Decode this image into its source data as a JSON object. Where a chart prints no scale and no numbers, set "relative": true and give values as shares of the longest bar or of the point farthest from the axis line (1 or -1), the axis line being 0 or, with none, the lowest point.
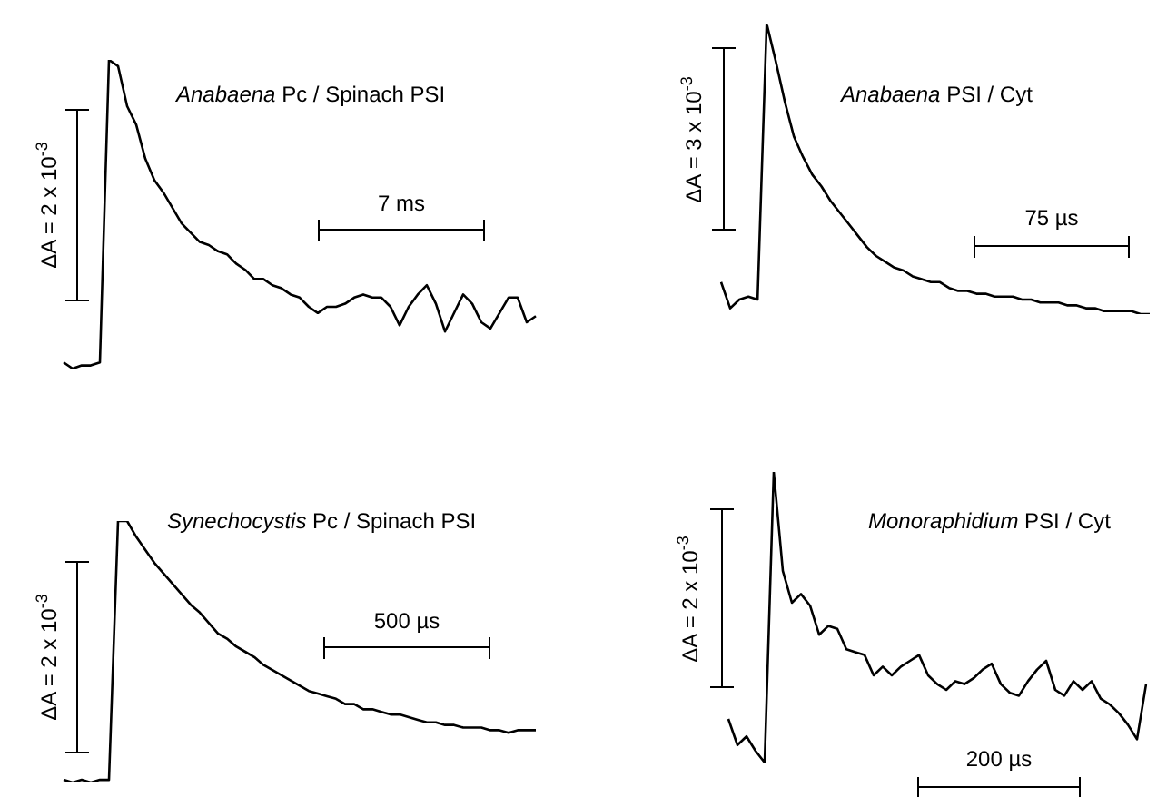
{
  "chart_data": [
    {
      "type": "line",
      "title": "Anabaena Pc / Spinach PSI",
      "relative": true,
      "marker": "none",
      "color": "#000000",
      "categories": [
        null,
        null,
        null,
        null,
        null,
        null,
        null,
        null,
        null,
        null,
        null,
        null,
        null,
        null,
        null,
        null,
        null,
        null,
        null,
        null,
        null,
        null,
        null,
        null,
        null,
        null,
        null,
        null,
        null,
        null,
        null,
        null,
        null,
        null,
        null,
        null,
        null,
        null,
        null,
        null,
        null,
        null,
        null,
        null,
        null,
        null,
        null,
        null,
        null,
        null,
        null,
        null,
        null
      ],
      "values": [
        0.02,
        0,
        0.01,
        0.01,
        0.02,
        1,
        0.98,
        0.85,
        0.79,
        0.68,
        0.61,
        0.57,
        0.52,
        0.47,
        0.44,
        0.41,
        0.4,
        0.38,
        0.37,
        0.34,
        0.32,
        0.29,
        0.29,
        0.27,
        0.26,
        0.24,
        0.23,
        0.2,
        0.18,
        0.2,
        0.2,
        0.21,
        0.23,
        0.24,
        0.23,
        0.23,
        0.2,
        0.14,
        0.2,
        0.24,
        0.27,
        0.21,
        0.12,
        0.18,
        0.24,
        0.21,
        0.15,
        0.13,
        0.18,
        0.23,
        0.23,
        0.15,
        0.17
      ],
      "annotations": [
        "ΔA = 2 x 10$^{-3}$",
        "7 ms"
      ]
    },
    {
      "type": "line",
      "title": "Anabaena PSI / Cyt",
      "relative": true,
      "marker": "none",
      "color": "#000000",
      "categories": [
        null,
        null,
        null,
        null,
        null,
        null,
        null,
        null,
        null,
        null,
        null,
        null,
        null,
        null,
        null,
        null,
        null,
        null,
        null,
        null,
        null,
        null,
        null,
        null,
        null,
        null,
        null,
        null,
        null,
        null,
        null,
        null,
        null,
        null,
        null,
        null,
        null,
        null,
        null,
        null,
        null,
        null,
        null,
        null,
        null,
        null,
        null,
        null
      ],
      "values": [
        0.11,
        0.02,
        0.05,
        0.06,
        0.05,
        1,
        0.87,
        0.73,
        0.61,
        0.54,
        0.48,
        0.44,
        0.39,
        0.35,
        0.31,
        0.27,
        0.23,
        0.2,
        0.18,
        0.16,
        0.15,
        0.13,
        0.12,
        0.11,
        0.11,
        0.09,
        0.08,
        0.08,
        0.07,
        0.07,
        0.06,
        0.06,
        0.06,
        0.05,
        0.05,
        0.04,
        0.04,
        0.04,
        0.03,
        0.03,
        0.02,
        0.02,
        0.01,
        0.01,
        0.01,
        0.01,
        0,
        0
      ],
      "annotations": [
        "ΔA = 3 x 10$^{-3}$",
        "75 µs"
      ]
    },
    {
      "type": "line",
      "title": "Synechocystis Pc / Spinach PSI",
      "relative": true,
      "marker": "none",
      "color": "#000000",
      "categories": [
        null,
        null,
        null,
        null,
        null,
        null,
        null,
        null,
        null,
        null,
        null,
        null,
        null,
        null,
        null,
        null,
        null,
        null,
        null,
        null,
        null,
        null,
        null,
        null,
        null,
        null,
        null,
        null,
        null,
        null,
        null,
        null,
        null,
        null,
        null,
        null,
        null,
        null,
        null,
        null,
        null,
        null,
        null,
        null,
        null,
        null,
        null,
        null,
        null,
        null,
        null,
        null,
        null
      ],
      "values": [
        0.01,
        0,
        0.01,
        0,
        0.01,
        0.01,
        1,
        1,
        0.94,
        0.89,
        0.84,
        0.8,
        0.76,
        0.72,
        0.68,
        0.65,
        0.61,
        0.57,
        0.55,
        0.52,
        0.5,
        0.48,
        0.45,
        0.43,
        0.41,
        0.39,
        0.37,
        0.35,
        0.34,
        0.33,
        0.32,
        0.3,
        0.3,
        0.28,
        0.28,
        0.27,
        0.26,
        0.26,
        0.25,
        0.24,
        0.23,
        0.23,
        0.22,
        0.22,
        0.21,
        0.21,
        0.21,
        0.2,
        0.2,
        0.19,
        0.2,
        0.2,
        0.2
      ],
      "annotations": [
        "ΔA = 2 x 10$^{-3}$",
        "500 µs"
      ]
    },
    {
      "type": "line",
      "title": "Monoraphidium PSI / Cyt",
      "relative": true,
      "marker": "none",
      "color": "#000000",
      "categories": [
        null,
        null,
        null,
        null,
        null,
        null,
        null,
        null,
        null,
        null,
        null,
        null,
        null,
        null,
        null,
        null,
        null,
        null,
        null,
        null,
        null,
        null,
        null,
        null,
        null,
        null,
        null,
        null,
        null,
        null,
        null,
        null,
        null,
        null,
        null,
        null,
        null,
        null,
        null,
        null,
        null,
        null,
        null,
        null,
        null,
        null,
        null
      ],
      "values": [
        0.15,
        0.06,
        0.09,
        0.04,
        0,
        1,
        0.66,
        0.55,
        0.58,
        0.54,
        0.44,
        0.47,
        0.46,
        0.39,
        0.38,
        0.37,
        0.3,
        0.33,
        0.3,
        0.33,
        0.35,
        0.37,
        0.3,
        0.27,
        0.25,
        0.28,
        0.27,
        0.29,
        0.32,
        0.34,
        0.27,
        0.24,
        0.23,
        0.28,
        0.32,
        0.35,
        0.25,
        0.23,
        0.28,
        0.25,
        0.28,
        0.22,
        0.2,
        0.17,
        0.13,
        0.08,
        0.27
      ],
      "annotations": [
        "ΔA = 2 x 10$^{-3}$",
        "200 µs"
      ]
    }
  ]
}
